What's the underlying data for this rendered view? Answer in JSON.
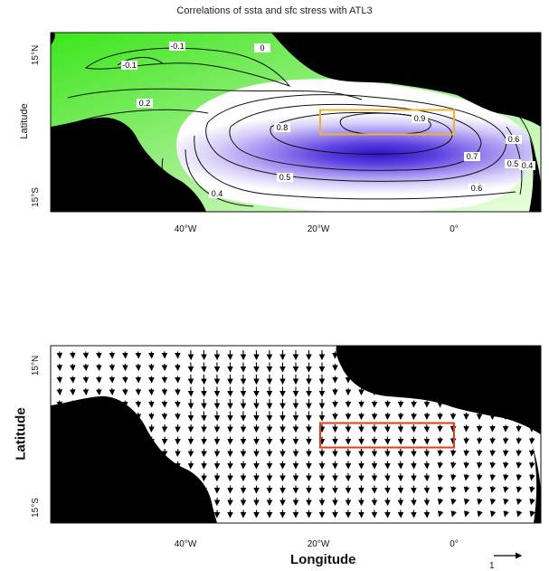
{
  "chart_data": [
    {
      "type": "contour",
      "title": "Correlations of ssta and sfc stress with ATL3",
      "ylabel": "Latitude",
      "x_ticks": [
        "40°W",
        "20°W",
        "0°"
      ],
      "y_ticks": [
        "15°N",
        "15°S"
      ],
      "contour_labels": [
        "-0.1",
        "-0.1",
        "0",
        "0.2",
        "0.8",
        "0.9",
        "0.7",
        "0.6",
        "0.5",
        "0.4",
        "0.6",
        "0.5",
        "0.4"
      ],
      "box": {
        "lon": [
          -20,
          0
        ],
        "lat": [
          -3,
          3
        ],
        "color": "#e8b530"
      },
      "colors": {
        "positive_high": "#3a1fd0",
        "neutral": "#ffffff",
        "negative": "#3ce61c",
        "land": "#000000"
      }
    },
    {
      "type": "vector",
      "ylabel": "Latitude",
      "xlabel": "Longitude",
      "x_ticks": [
        "40°W",
        "20°W",
        "0°"
      ],
      "y_ticks": [
        "15°N",
        "15°S"
      ],
      "reference_vector_label": "1",
      "box": {
        "lon": [
          -20,
          0
        ],
        "lat": [
          -3,
          3
        ],
        "color": "#e43a1e"
      }
    }
  ]
}
